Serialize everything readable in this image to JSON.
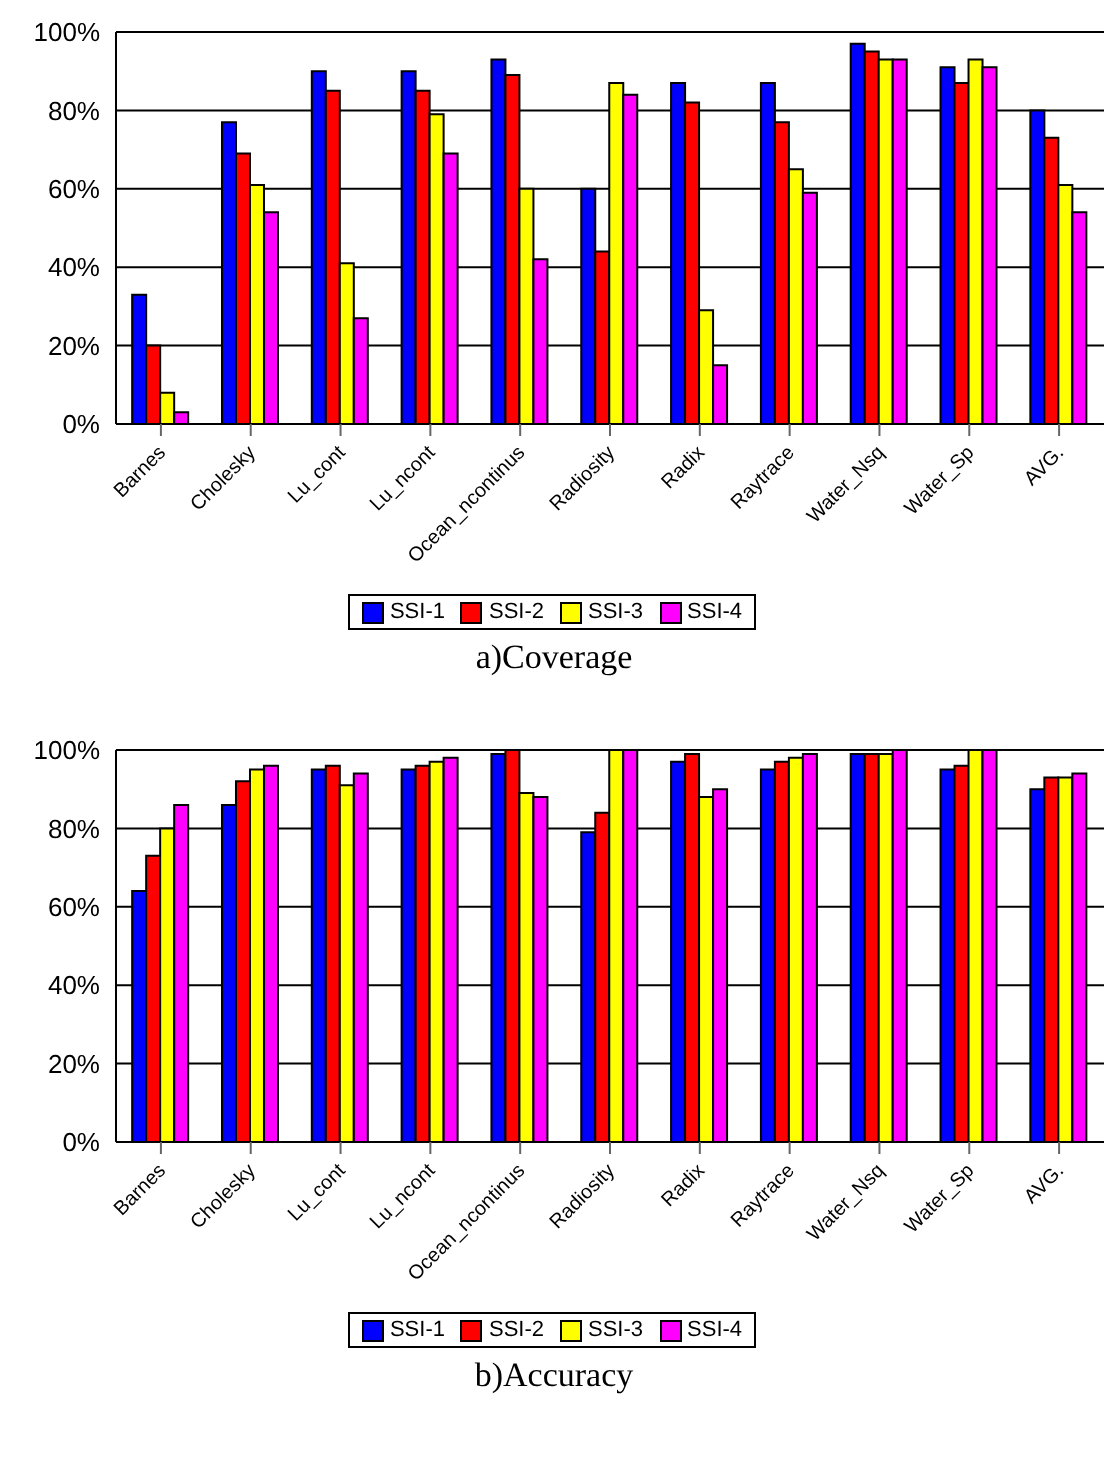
{
  "chart_data": [
    {
      "type": "bar",
      "title": "a)Coverage",
      "categories": [
        "Barnes",
        "Cholesky",
        "Lu_cont",
        "Lu_ncont",
        "Ocean_ncontinus",
        "Radiosity",
        "Radix",
        "Raytrace",
        "Water_Nsq",
        "Water_Sp",
        "AVG."
      ],
      "series": [
        {
          "name": "SSI-1",
          "color": "#0000ff",
          "values": [
            33,
            77,
            90,
            90,
            93,
            60,
            87,
            87,
            97,
            91,
            80
          ]
        },
        {
          "name": "SSI-2",
          "color": "#ff0000",
          "values": [
            20,
            69,
            85,
            85,
            89,
            44,
            82,
            77,
            95,
            87,
            73
          ]
        },
        {
          "name": "SSI-3",
          "color": "#ffff00",
          "values": [
            8,
            61,
            41,
            79,
            60,
            87,
            29,
            65,
            93,
            93,
            61
          ]
        },
        {
          "name": "SSI-4",
          "color": "#ff00ff",
          "values": [
            3,
            54,
            27,
            69,
            42,
            84,
            15,
            59,
            93,
            91,
            54
          ]
        }
      ],
      "ylim": [
        0,
        100
      ],
      "yticks": [
        {
          "value": 0,
          "label": "0%"
        },
        {
          "value": 20,
          "label": "20%"
        },
        {
          "value": 40,
          "label": "40%"
        },
        {
          "value": 60,
          "label": "60%"
        },
        {
          "value": 80,
          "label": "80%"
        },
        {
          "value": 100,
          "label": "100%"
        }
      ],
      "grid": "y",
      "legend": "bottom"
    },
    {
      "type": "bar",
      "title": "b)Accuracy",
      "categories": [
        "Barnes",
        "Cholesky",
        "Lu_cont",
        "Lu_ncont",
        "Ocean_ncontinus",
        "Radiosity",
        "Radix",
        "Raytrace",
        "Water_Nsq",
        "Water_Sp",
        "AVG."
      ],
      "series": [
        {
          "name": "SSI-1",
          "color": "#0000ff",
          "values": [
            64,
            86,
            95,
            95,
            99,
            79,
            97,
            95,
            99,
            95,
            90
          ]
        },
        {
          "name": "SSI-2",
          "color": "#ff0000",
          "values": [
            73,
            92,
            96,
            96,
            100,
            84,
            99,
            97,
            99,
            96,
            93
          ]
        },
        {
          "name": "SSI-3",
          "color": "#ffff00",
          "values": [
            80,
            95,
            91,
            97,
            89,
            100,
            88,
            98,
            99,
            100,
            93
          ]
        },
        {
          "name": "SSI-4",
          "color": "#ff00ff",
          "values": [
            86,
            96,
            94,
            98,
            88,
            100,
            90,
            99,
            100,
            100,
            94
          ]
        }
      ],
      "ylim": [
        0,
        100
      ],
      "yticks": [
        {
          "value": 0,
          "label": "0%"
        },
        {
          "value": 20,
          "label": "20%"
        },
        {
          "value": 40,
          "label": "40%"
        },
        {
          "value": 60,
          "label": "60%"
        },
        {
          "value": 80,
          "label": "80%"
        },
        {
          "value": 100,
          "label": "100%"
        }
      ],
      "grid": "y",
      "legend": "bottom"
    }
  ]
}
